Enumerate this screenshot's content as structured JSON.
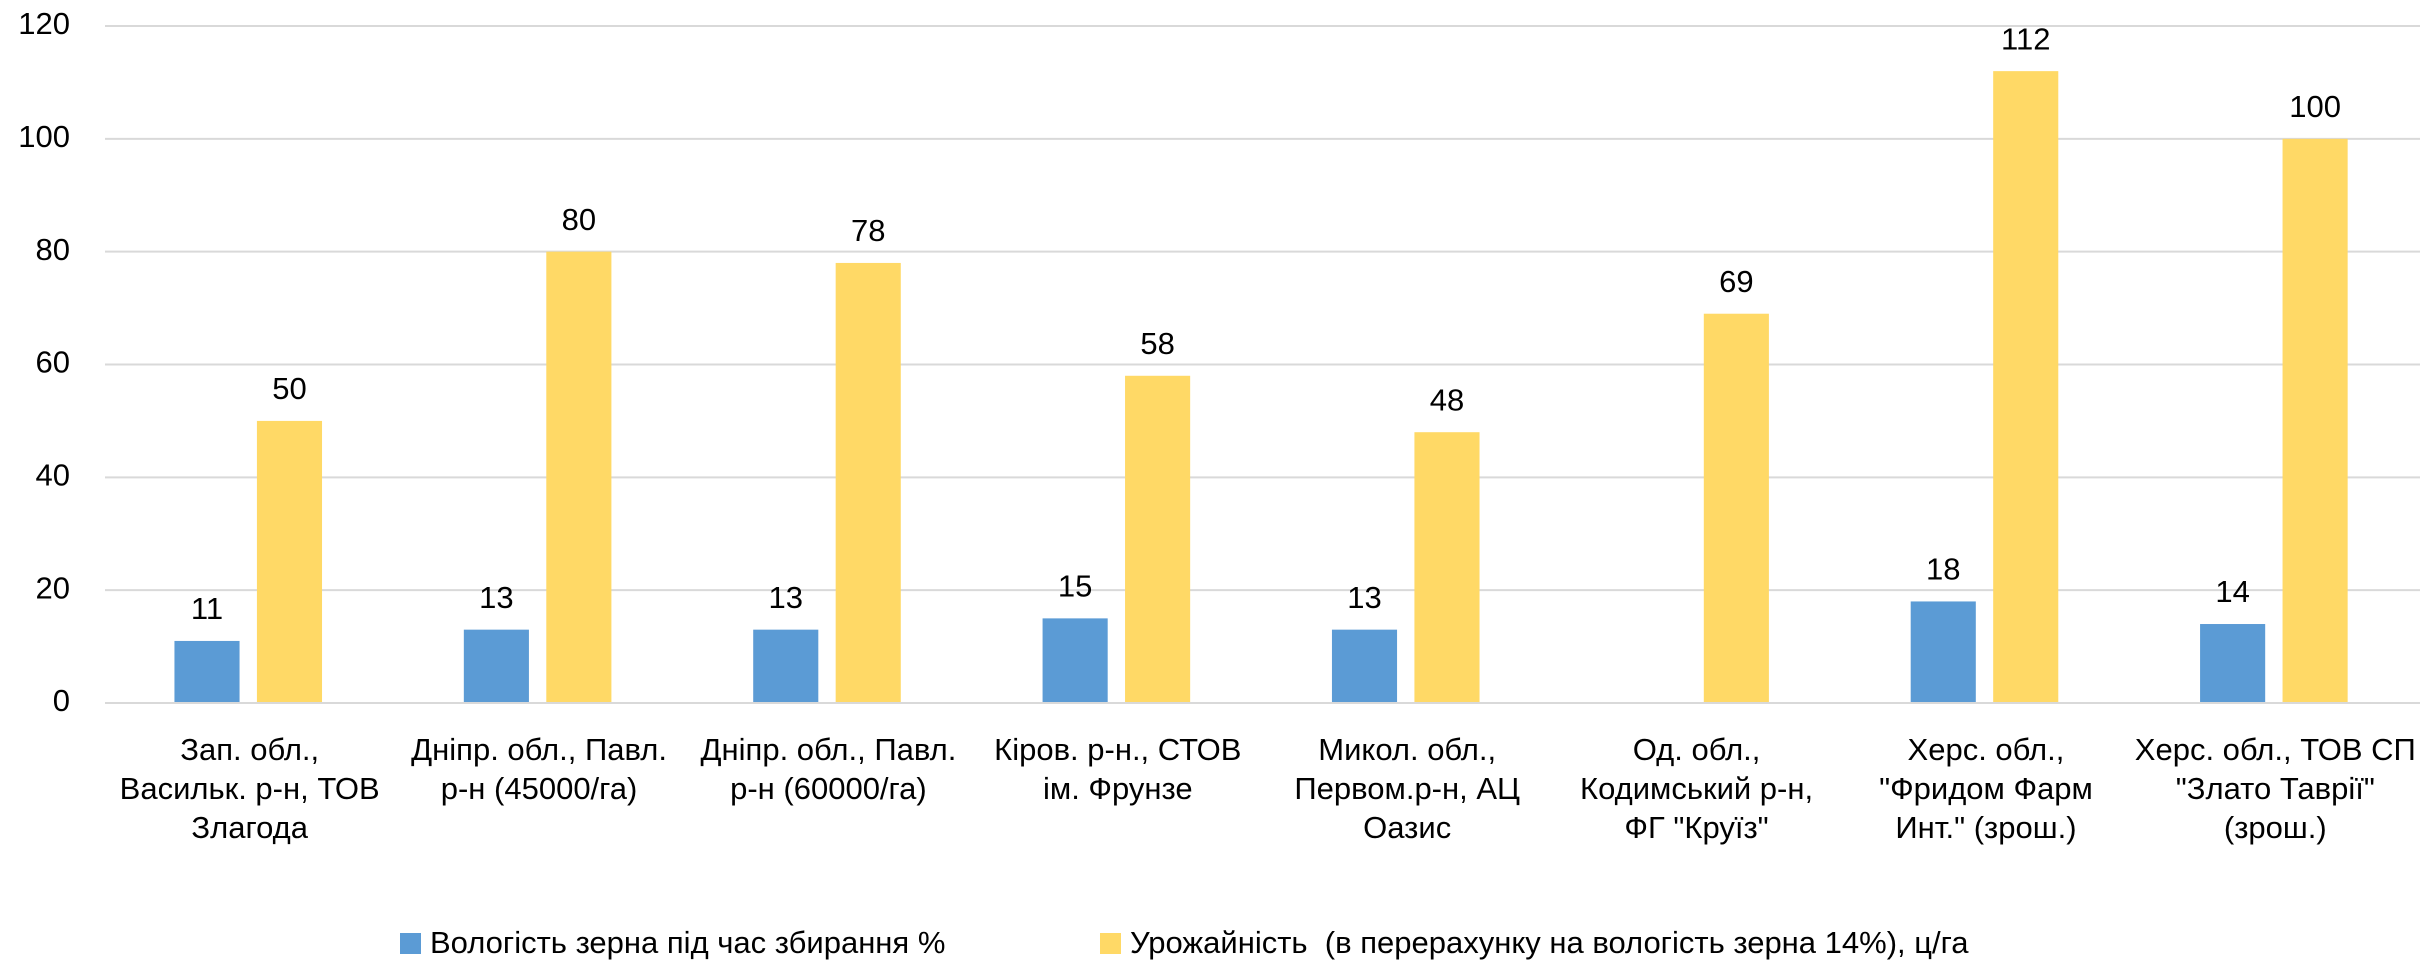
{
  "chart_data": {
    "type": "bar",
    "categories": [
      "Зап. обл.,\nВасильк. р-н, ТОВ\nЗлагода",
      "Дніпр. обл., Павл.\nр-н (45000/га)",
      "Дніпр. обл., Павл.\nр-н (60000/га)",
      "Кіров. р-н., СТОВ\nім. Фрунзе",
      "Микол. обл.,\nПервом.р-н, АЦ\nОазис",
      "Од. обл.,\nКодимський р-н,\nФГ \"Круїз\"",
      "Херс. обл.,\n\"Фридом Фарм\nИнт.\" (зрош.)",
      "Херс. обл., ТОВ СП\n\"Злато Таврії\"\n(зрош.)"
    ],
    "series": [
      {
        "name": "Вологість зерна під час збирання %",
        "color": "#5b9bd5",
        "values": [
          11,
          13,
          13,
          15,
          13,
          null,
          18,
          14
        ]
      },
      {
        "name": "Урожайність  (в перерахунку на вологість зерна 14%), ц/га",
        "color": "#ffd966",
        "values": [
          50,
          80,
          78,
          58,
          48,
          69,
          112,
          100
        ]
      }
    ],
    "ylim": [
      0,
      120
    ],
    "yticks": [
      0,
      20,
      40,
      60,
      80,
      100,
      120
    ],
    "grid": true,
    "legend": "bottom"
  }
}
